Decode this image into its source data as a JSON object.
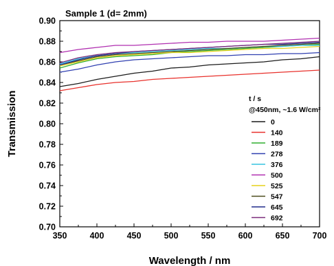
{
  "chart_data": {
    "type": "line",
    "title": "Sample 1 (d= 2mm)",
    "xlabel": "Wavelength / nm",
    "ylabel": "Transmission",
    "xlim": [
      350,
      700
    ],
    "ylim": [
      0.7,
      0.9
    ],
    "x_ticks": [
      350,
      400,
      450,
      500,
      550,
      600,
      650,
      700
    ],
    "y_ticks": [
      0.7,
      0.72,
      0.74,
      0.76,
      0.78,
      0.8,
      0.82,
      0.84,
      0.86,
      0.88,
      0.9
    ],
    "x_tick_labels": [
      "350",
      "400",
      "450",
      "500",
      "550",
      "600",
      "650",
      "700"
    ],
    "y_tick_labels": [
      "0.70",
      "0.72",
      "0.74",
      "0.76",
      "0.78",
      "0.80",
      "0.82",
      "0.84",
      "0.86",
      "0.88",
      "0.90"
    ],
    "grid": false,
    "legend_title_1": "t / s",
    "legend_title_2": "@450nm, ~1.6 W/cm²",
    "legend_position": "right",
    "x": [
      350,
      375,
      400,
      425,
      450,
      475,
      500,
      525,
      550,
      575,
      600,
      625,
      650,
      675,
      700
    ],
    "series": [
      {
        "name": "0",
        "color": "#1a1a1a",
        "values": [
          0.836,
          0.839,
          0.843,
          0.846,
          0.849,
          0.851,
          0.854,
          0.855,
          0.857,
          0.858,
          0.859,
          0.86,
          0.862,
          0.863,
          0.865
        ]
      },
      {
        "name": "140",
        "color": "#e8302b",
        "values": [
          0.832,
          0.835,
          0.838,
          0.84,
          0.841,
          0.843,
          0.844,
          0.845,
          0.846,
          0.847,
          0.848,
          0.849,
          0.85,
          0.851,
          0.852
        ]
      },
      {
        "name": "189",
        "color": "#2fae2f",
        "values": [
          0.854,
          0.859,
          0.863,
          0.865,
          0.866,
          0.867,
          0.869,
          0.87,
          0.871,
          0.872,
          0.873,
          0.874,
          0.875,
          0.876,
          0.877
        ]
      },
      {
        "name": "278",
        "color": "#2f3fb0",
        "values": [
          0.85,
          0.853,
          0.857,
          0.86,
          0.862,
          0.863,
          0.864,
          0.865,
          0.866,
          0.866,
          0.867,
          0.867,
          0.868,
          0.868,
          0.869
        ]
      },
      {
        "name": "376",
        "color": "#35c4e0",
        "values": [
          0.858,
          0.863,
          0.866,
          0.868,
          0.869,
          0.87,
          0.871,
          0.872,
          0.873,
          0.873,
          0.874,
          0.875,
          0.875,
          0.876,
          0.876
        ]
      },
      {
        "name": "500",
        "color": "#b02fb0",
        "values": [
          0.869,
          0.872,
          0.874,
          0.876,
          0.876,
          0.877,
          0.878,
          0.879,
          0.879,
          0.88,
          0.88,
          0.88,
          0.881,
          0.882,
          0.883
        ]
      },
      {
        "name": "525",
        "color": "#e6d21a",
        "values": [
          0.856,
          0.86,
          0.864,
          0.866,
          0.867,
          0.868,
          0.869,
          0.869,
          0.87,
          0.871,
          0.872,
          0.873,
          0.873,
          0.874,
          0.875
        ]
      },
      {
        "name": "547",
        "color": "#4a4a1a",
        "values": [
          0.857,
          0.861,
          0.865,
          0.867,
          0.868,
          0.869,
          0.87,
          0.871,
          0.872,
          0.873,
          0.874,
          0.875,
          0.876,
          0.877,
          0.878
        ]
      },
      {
        "name": "645",
        "color": "#1f2a8a",
        "values": [
          0.857,
          0.862,
          0.866,
          0.868,
          0.87,
          0.871,
          0.872,
          0.873,
          0.874,
          0.875,
          0.876,
          0.877,
          0.877,
          0.878,
          0.879
        ]
      },
      {
        "name": "692",
        "color": "#7a2a7a",
        "values": [
          0.859,
          0.864,
          0.867,
          0.869,
          0.87,
          0.871,
          0.872,
          0.873,
          0.874,
          0.875,
          0.876,
          0.877,
          0.878,
          0.879,
          0.88
        ]
      }
    ]
  }
}
